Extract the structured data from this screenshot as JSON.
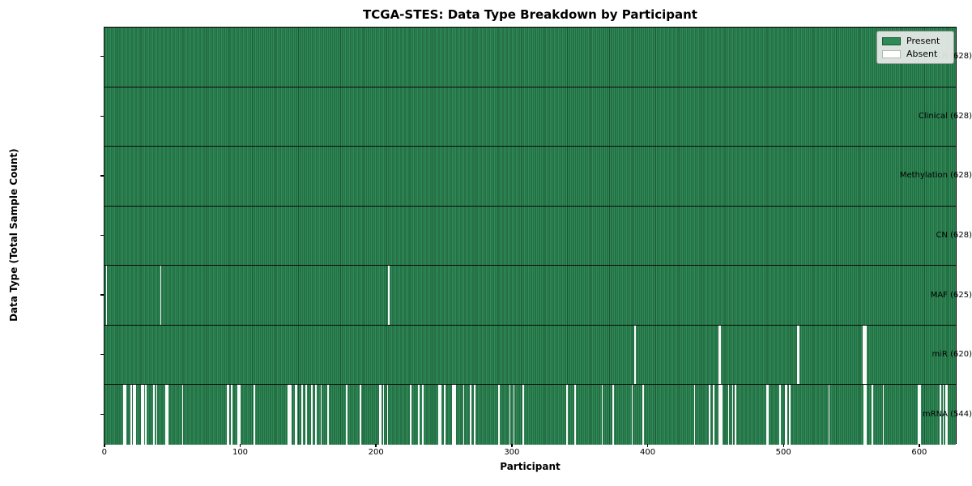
{
  "title": "TCGA-STES: Data Type Breakdown by Participant",
  "axes": {
    "x_label": "Participant",
    "y_label": "Data Type (Total Sample Count)"
  },
  "legend": {
    "present_label": "Present",
    "absent_label": "Absent"
  },
  "colors": {
    "present": "#2e8b57",
    "present_edge": "#1d5535",
    "absent": "#ffffff"
  },
  "chart_data": {
    "type": "heatmap",
    "title": "TCGA-STES: Data Type Breakdown by Participant",
    "xlabel": "Participant",
    "ylabel": "Data Type (Total Sample Count)",
    "legend_entries": [
      "Present",
      "Absent"
    ],
    "legend_position": "upper right",
    "n_participants": 628,
    "xlim": [
      -0.5,
      627.5
    ],
    "x_ticks": [
      0,
      100,
      200,
      300,
      400,
      500,
      600
    ],
    "present_color": "#2e8b57",
    "absent_color": "#ffffff",
    "rows": [
      {
        "label": "BCR (628)",
        "data_type": "BCR",
        "present_count": 628,
        "absent_participants": []
      },
      {
        "label": "Clinical (628)",
        "data_type": "Clinical",
        "present_count": 628,
        "absent_participants": []
      },
      {
        "label": "Methylation (628)",
        "data_type": "Methylation",
        "present_count": 628,
        "absent_participants": []
      },
      {
        "label": "CN (628)",
        "data_type": "CN",
        "present_count": 628,
        "absent_participants": []
      },
      {
        "label": "MAF (625)",
        "data_type": "MAF",
        "present_count": 625,
        "absent_participants": [
          1,
          41,
          209
        ]
      },
      {
        "label": "miR (620)",
        "data_type": "miR",
        "present_count": 620,
        "absent_participants": [
          390,
          452,
          453,
          510,
          511,
          558,
          559,
          560
        ]
      },
      {
        "label": "mRNA (544)",
        "data_type": "mRNA",
        "present_count": 544,
        "absent_participants": [
          14,
          15,
          19,
          21,
          22,
          27,
          28,
          30,
          36,
          38,
          45,
          46,
          57,
          90,
          91,
          93,
          98,
          99,
          110,
          135,
          136,
          137,
          140,
          141,
          145,
          148,
          152,
          155,
          159,
          164,
          178,
          188,
          202,
          203,
          205,
          208,
          225,
          231,
          234,
          246,
          247,
          250,
          256,
          257,
          258,
          264,
          269,
          272,
          290,
          298,
          301,
          308,
          340,
          346,
          366,
          374,
          388,
          396,
          434,
          445,
          448,
          452,
          453,
          454,
          459,
          462,
          464,
          487,
          488,
          497,
          501,
          502,
          504,
          533,
          559,
          560,
          565,
          573,
          599,
          600,
          615,
          617,
          619,
          620
        ]
      }
    ]
  }
}
